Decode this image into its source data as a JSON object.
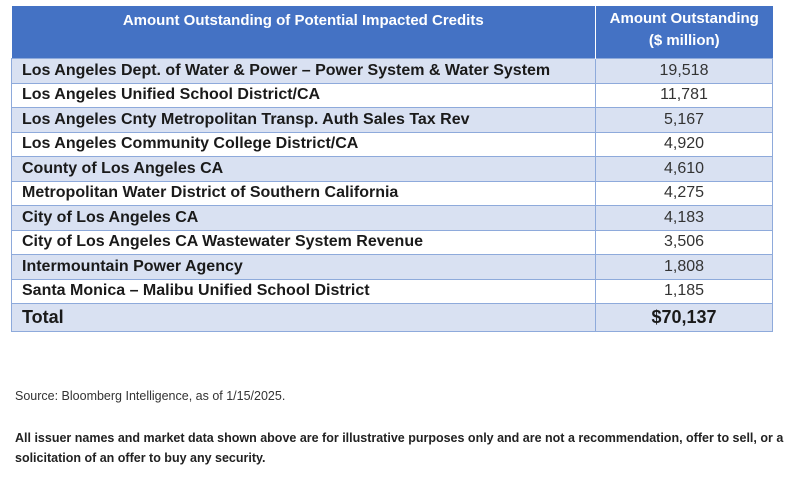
{
  "table": {
    "header": {
      "name": "Amount Outstanding of Potential Impacted Credits",
      "amount_line1": "Amount Outstanding",
      "amount_line2": "($ million)"
    },
    "rows": [
      {
        "name": "Los Angeles Dept. of Water & Power – Power System & Water System",
        "amount": "19,518"
      },
      {
        "name": "Los Angeles Unified School District/CA",
        "amount": "11,781"
      },
      {
        "name": "Los Angeles Cnty Metropolitan Transp. Auth Sales Tax Rev",
        "amount": "5,167"
      },
      {
        "name": "Los Angeles Community College District/CA",
        "amount": "4,920"
      },
      {
        "name": "County of Los Angeles CA",
        "amount": "4,610"
      },
      {
        "name": "Metropolitan Water District of Southern California",
        "amount": "4,275"
      },
      {
        "name": "City of Los Angeles CA",
        "amount": "4,183"
      },
      {
        "name": "City of Los Angeles CA Wastewater System Revenue",
        "amount": "3,506"
      },
      {
        "name": "Intermountain Power Agency",
        "amount": "1,808"
      },
      {
        "name": "Santa Monica – Malibu Unified School District",
        "amount": "1,185"
      }
    ],
    "total": {
      "name": "Total",
      "amount": "$70,137"
    }
  },
  "source": "Source: Bloomberg Intelligence, as of 1/15/2025.",
  "disclaimer": "All issuer names and market data shown above are for illustrative purposes only and are not a recommendation, offer to sell, or a solicitation of an offer to buy any security.",
  "colors": {
    "header_bg": "#4472c4",
    "stripe_bg": "#d9e1f2",
    "border": "#8eaadb"
  }
}
